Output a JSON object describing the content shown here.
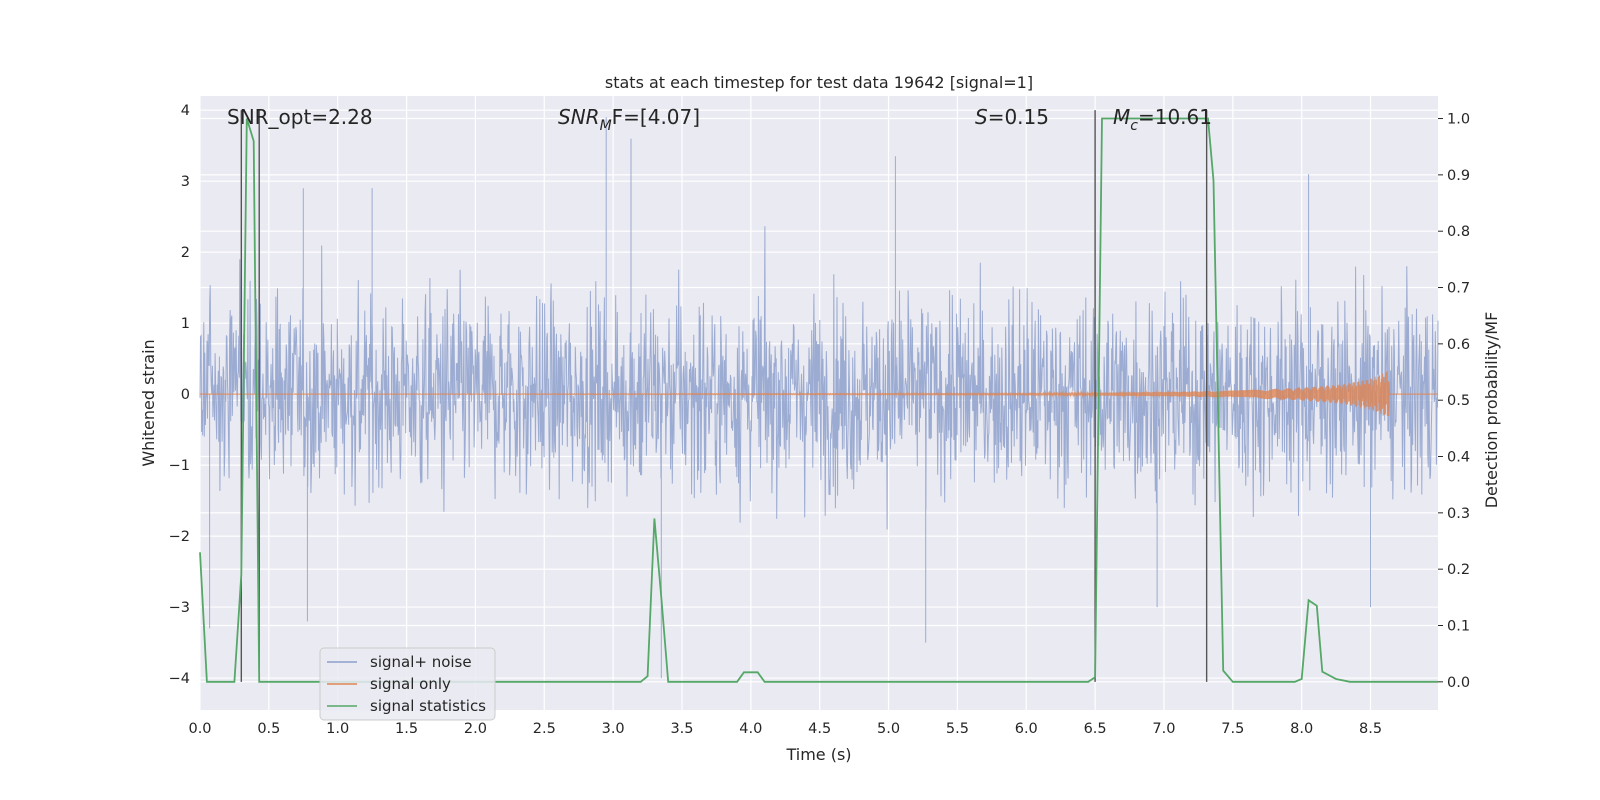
{
  "chart_data": {
    "type": "line",
    "title": "stats at each timestep for test data 19642 [signal=1]",
    "xlabel": "Time (s)",
    "ylabel": "Whitened strain",
    "ylabel_right": "Detection probability/MF",
    "xlim": [
      0.0,
      8.99
    ],
    "ylim": [
      -4.45,
      4.2
    ],
    "ylim_right": [
      -0.05,
      1.04
    ],
    "x_ticks": [
      "0.0",
      "0.5",
      "1.0",
      "1.5",
      "2.0",
      "2.5",
      "3.0",
      "3.5",
      "4.0",
      "4.5",
      "5.0",
      "5.5",
      "6.0",
      "6.5",
      "7.0",
      "7.5",
      "8.0",
      "8.5"
    ],
    "y_ticks": [
      "4",
      "3",
      "2",
      "1",
      "0",
      "−1",
      "−2",
      "−3",
      "−4"
    ],
    "y_right_ticks": [
      "1.0",
      "0.9",
      "0.8",
      "0.7",
      "0.6",
      "0.5",
      "0.4",
      "0.3",
      "0.2",
      "0.1",
      "0.0"
    ],
    "grid": true,
    "legend_placement": "lower-left",
    "annotations": {
      "snr_opt": "SNR_opt=2.28",
      "snr_mf_base": "SNR",
      "snr_mf_sub": "M",
      "snr_mf_rest": "F=[4.07]",
      "s_base": "S",
      "s_rest": "=0.15",
      "mc_base": "M",
      "mc_sub": "c",
      "mc_rest": "=10.61"
    },
    "vertical_lines_x": [
      0.3,
      0.43,
      6.5,
      7.31
    ],
    "series": [
      {
        "name": "signal+ noise",
        "color": "#8da0cb",
        "description": "whitened strain noise, roughly within -2.5 to 2.7 with peaks to ~3.9",
        "peaks": [
          {
            "x": 2.95,
            "y": 3.9
          },
          {
            "x": 3.13,
            "y": 3.6
          },
          {
            "x": 5.05,
            "y": 3.35
          },
          {
            "x": 8.05,
            "y": 3.1
          },
          {
            "x": 1.25,
            "y": 2.9
          },
          {
            "x": 0.75,
            "y": 2.9
          },
          {
            "x": 3.35,
            "y": -4.0
          },
          {
            "x": 5.27,
            "y": -3.5
          },
          {
            "x": 0.07,
            "y": -3.3
          },
          {
            "x": 0.78,
            "y": -3.2
          },
          {
            "x": 6.95,
            "y": -3.0
          },
          {
            "x": 8.5,
            "y": -3.0
          }
        ]
      },
      {
        "name": "signal only",
        "color": "#dd8452",
        "description": "chirp signal growing in amplitude toward t≈8.63",
        "envelope": [
          {
            "x": 0.0,
            "amp": 0.0
          },
          {
            "x": 6.0,
            "amp": 0.01
          },
          {
            "x": 7.0,
            "amp": 0.03
          },
          {
            "x": 7.5,
            "amp": 0.05
          },
          {
            "x": 8.0,
            "amp": 0.09
          },
          {
            "x": 8.3,
            "amp": 0.14
          },
          {
            "x": 8.5,
            "amp": 0.22
          },
          {
            "x": 8.6,
            "amp": 0.3
          },
          {
            "x": 8.63,
            "amp": 0.36
          },
          {
            "x": 8.64,
            "amp": 0.0
          }
        ]
      },
      {
        "name": "signal statistics",
        "color": "#55a868",
        "axis": "right",
        "points": [
          {
            "x": 0.0,
            "y": 0.23
          },
          {
            "x": 0.05,
            "y": 0.0
          },
          {
            "x": 0.25,
            "y": 0.0
          },
          {
            "x": 0.3,
            "y": 0.19
          },
          {
            "x": 0.34,
            "y": 1.0
          },
          {
            "x": 0.39,
            "y": 0.96
          },
          {
            "x": 0.43,
            "y": 0.0
          },
          {
            "x": 3.2,
            "y": 0.0
          },
          {
            "x": 3.25,
            "y": 0.01
          },
          {
            "x": 3.3,
            "y": 0.29
          },
          {
            "x": 3.35,
            "y": 0.15
          },
          {
            "x": 3.4,
            "y": 0.0
          },
          {
            "x": 3.9,
            "y": 0.0
          },
          {
            "x": 3.95,
            "y": 0.017
          },
          {
            "x": 4.05,
            "y": 0.017
          },
          {
            "x": 4.1,
            "y": 0.0
          },
          {
            "x": 6.45,
            "y": 0.0
          },
          {
            "x": 6.5,
            "y": 0.008
          },
          {
            "x": 6.55,
            "y": 1.0
          },
          {
            "x": 7.32,
            "y": 1.0
          },
          {
            "x": 7.36,
            "y": 0.89
          },
          {
            "x": 7.43,
            "y": 0.02
          },
          {
            "x": 7.5,
            "y": 0.0
          },
          {
            "x": 7.95,
            "y": 0.0
          },
          {
            "x": 8.0,
            "y": 0.005
          },
          {
            "x": 8.05,
            "y": 0.145
          },
          {
            "x": 8.11,
            "y": 0.135
          },
          {
            "x": 8.15,
            "y": 0.018
          },
          {
            "x": 8.25,
            "y": 0.005
          },
          {
            "x": 8.35,
            "y": 0.0
          },
          {
            "x": 8.99,
            "y": 0.0
          }
        ]
      }
    ]
  }
}
